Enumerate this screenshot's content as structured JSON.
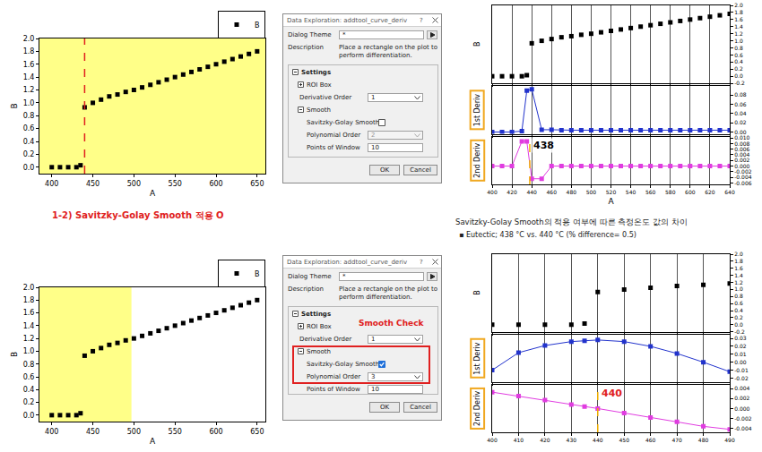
{
  "chart_data": [
    {
      "type": "scatter",
      "xlabel": "A",
      "ylabel": "B",
      "x": [
        400,
        410,
        420,
        430,
        435,
        440,
        450,
        460,
        470,
        480,
        490,
        500,
        510,
        520,
        530,
        540,
        550,
        560,
        570,
        580,
        590,
        600,
        610,
        620,
        630,
        640,
        650
      ],
      "series": [
        {
          "name": "B",
          "color": "#000000",
          "marker": "square",
          "values": [
            0,
            0,
            0,
            0,
            0.03,
            0.93,
            1.0,
            1.05,
            1.1,
            1.13,
            1.17,
            1.2,
            1.24,
            1.28,
            1.32,
            1.36,
            1.4,
            1.44,
            1.48,
            1.52,
            1.56,
            1.6,
            1.64,
            1.68,
            1.72,
            1.76,
            1.8
          ]
        }
      ],
      "xlim": [
        385,
        660
      ],
      "xticks": [
        400,
        450,
        500,
        550,
        600,
        650
      ],
      "ylim": [
        -0.1,
        2.0
      ],
      "yticks": [
        {
          "value": 0,
          "label": "0.0"
        },
        0.2,
        0.4,
        0.6,
        0.8,
        {
          "value": 1,
          "label": "1.0"
        },
        1.2,
        1.4,
        1.6,
        1.8,
        {
          "value": 2,
          "label": "2.0"
        }
      ],
      "legend": "top right",
      "grid": false,
      "roi": [
        385,
        660
      ],
      "vlines": [
        {
          "x": 440,
          "color": "#e02020",
          "line_style": "dash"
        }
      ]
    },
    {
      "type": "scatter",
      "xlabel": "A",
      "grid": "x",
      "x": [
        400,
        410,
        420,
        430,
        435,
        440,
        450,
        460,
        470,
        480,
        490,
        500,
        510,
        520,
        530,
        540,
        550,
        560,
        570,
        580,
        590,
        600,
        610,
        620,
        630,
        640
      ],
      "xlim": [
        400,
        640
      ],
      "xticks": [
        400,
        420,
        440,
        460,
        480,
        500,
        520,
        540,
        560,
        580,
        600,
        620,
        640
      ],
      "panels": [
        {
          "ylabel": "B",
          "tick_labels": "y",
          "ylim": [
            -0.2,
            2.0
          ],
          "yticks": [
            -0.2,
            {
              "value": 0,
              "label": "0.0"
            },
            0.2,
            0.4,
            0.6,
            0.8,
            {
              "value": 1,
              "label": "1.0"
            },
            1.2,
            1.4,
            1.6,
            1.8,
            {
              "value": 2,
              "label": "2.0"
            }
          ],
          "series": [
            {
              "color": "#000000",
              "marker": "square",
              "values": [
                0,
                0,
                0,
                0,
                0.03,
                0.93,
                1.0,
                1.05,
                1.1,
                1.13,
                1.17,
                1.2,
                1.24,
                1.28,
                1.32,
                1.36,
                1.4,
                1.44,
                1.48,
                1.52,
                1.56,
                1.6,
                1.64,
                1.68,
                1.72,
                1.76
              ]
            }
          ]
        },
        {
          "ylabel": "1st Deriv",
          "tick_labels": "y",
          "ylim": [
            -0.004,
            0.1
          ],
          "yticks": [
            {
              "value": 0,
              "label": "0.00"
            },
            0.02,
            0.04,
            0.06,
            0.08
          ],
          "series": [
            {
              "color": "#2233cc",
              "marker": "square",
              "line_style": "solid",
              "values": [
                0,
                0,
                0,
                0.002,
                0.09,
                0.093,
                0.005,
                0.005,
                0.004,
                0.004,
                0.004,
                0.004,
                0.004,
                0.004,
                0.004,
                0.004,
                0.004,
                0.004,
                0.004,
                0.004,
                0.004,
                0.004,
                0.004,
                0.004,
                0.004,
                0.004
              ]
            }
          ]
        },
        {
          "ylabel": "2nd Deriv",
          "ylim": [
            -0.0065,
            0.0105
          ],
          "yticks": [
            -0.006,
            -0.004,
            -0.002,
            {
              "value": 0,
              "label": "0.000"
            },
            0.002,
            0.004,
            0.006,
            0.008,
            {
              "value": 0.01,
              "label": "0.010"
            }
          ],
          "series": [
            {
              "color": "#e03ce0",
              "marker": "square",
              "line_style": "solid",
              "values": [
                0,
                0,
                0,
                0.0088,
                0.0088,
                -0.0045,
                -0.0045,
                0,
                0,
                0,
                0,
                0,
                0,
                0,
                0,
                0,
                0,
                0,
                0,
                0,
                0,
                0,
                0,
                0,
                0,
                0
              ]
            }
          ],
          "vlines": [
            {
              "x": 438,
              "color": "#f0b000",
              "line_style": "dash",
              "label": {
                "text": "438",
                "color": "#000000"
              }
            }
          ]
        }
      ]
    },
    {
      "type": "scatter",
      "xlabel": "A",
      "ylabel": "B",
      "x": [
        400,
        410,
        420,
        430,
        435,
        440,
        450,
        460,
        470,
        480,
        490,
        500,
        510,
        520,
        530,
        540,
        550,
        560,
        570,
        580,
        590,
        600,
        610,
        620,
        630,
        640,
        650
      ],
      "series": [
        {
          "name": "B",
          "color": "#000000",
          "marker": "square",
          "values": [
            0,
            0,
            0,
            0,
            0.03,
            0.93,
            1.0,
            1.05,
            1.1,
            1.13,
            1.17,
            1.2,
            1.24,
            1.28,
            1.32,
            1.36,
            1.4,
            1.44,
            1.48,
            1.52,
            1.56,
            1.6,
            1.64,
            1.68,
            1.72,
            1.76,
            1.8
          ]
        }
      ],
      "xlim": [
        385,
        660
      ],
      "xticks": [
        400,
        450,
        500,
        550,
        600,
        650
      ],
      "ylim": [
        -0.1,
        2.0
      ],
      "yticks": [
        {
          "value": 0,
          "label": "0.0"
        },
        0.2,
        0.4,
        0.6,
        0.8,
        {
          "value": 1,
          "label": "1.0"
        },
        1.2,
        1.4,
        1.6,
        1.8,
        {
          "value": 2,
          "label": "2.0"
        }
      ],
      "legend": "top right",
      "grid": false,
      "roi": [
        385,
        497
      ]
    },
    {
      "type": "scatter",
      "grid": "x",
      "x": [
        400,
        410,
        420,
        430,
        435,
        440,
        450,
        460,
        470,
        480,
        490
      ],
      "xlim": [
        400,
        490
      ],
      "xticks": [
        400,
        410,
        420,
        430,
        440,
        450,
        460,
        470,
        480,
        490
      ],
      "panels": [
        {
          "ylabel": "B",
          "tick_labels": "y",
          "ylim": [
            -0.2,
            2.0
          ],
          "yticks": [
            -0.2,
            {
              "value": 0,
              "label": "0.0"
            },
            0.2,
            0.4,
            0.6,
            0.8,
            {
              "value": 1,
              "label": "1.0"
            },
            1.2,
            1.4,
            1.6,
            1.8,
            {
              "value": 2,
              "label": "2.0"
            }
          ],
          "series": [
            {
              "color": "#000000",
              "marker": "square",
              "values": [
                0,
                0,
                0,
                0,
                0.03,
                0.93,
                1.0,
                1.05,
                1.1,
                1.13,
                1.17
              ]
            }
          ]
        },
        {
          "ylabel": "1st Deriv",
          "tick_labels": "y",
          "ylim": [
            -0.025,
            0.035
          ],
          "yticks": [
            -0.02,
            -0.01,
            {
              "value": 0,
              "label": "0.00"
            },
            0.01,
            0.02,
            0.03
          ],
          "series": [
            {
              "color": "#2233cc",
              "marker": "square",
              "line_style": "solid",
              "values": [
                -0.01,
                0.012,
                0.021,
                0.026,
                0.027,
                0.028,
                0.026,
                0.02,
                0.011,
                0.0,
                -0.012
              ]
            }
          ]
        },
        {
          "ylabel": "2nd Deriv",
          "ylim": [
            -0.0048,
            0.0048
          ],
          "yticks": [
            -0.004,
            -0.002,
            {
              "value": 0,
              "label": "0.000"
            },
            0.002,
            0.004
          ],
          "series": [
            {
              "color": "#e03ce0",
              "marker": "square",
              "line_style": "solid",
              "values": [
                0.0033,
                0.0025,
                0.0017,
                0.0008,
                0.0004,
                0.0,
                -0.0009,
                -0.0018,
                -0.0027,
                -0.0036,
                -0.0042
              ]
            }
          ],
          "vlines": [
            {
              "x": 440,
              "color": "#f0b000",
              "line_style": "dash",
              "label": {
                "text": "440",
                "color": "#e02020"
              }
            }
          ]
        }
      ]
    }
  ],
  "texts": {
    "section_label": "1-2) Savitzky-Golay  Smooth 적용 O",
    "comparison_title": "Savitzky-Golay Smooth의 적용 여부에 따른 측정온도 값의 차이",
    "comparison_note": "▪  Eutectic; 438 °C vs. 440 °C (% difference= 0.5)"
  },
  "dialogs": [
    {
      "title": "Data Exploration: addtool_curve_deriv",
      "help": "?",
      "theme_label": "Dialog Theme",
      "theme_value": "*",
      "description_label": "Description",
      "description": "Place a rectangle on the plot to perform differentiation.",
      "settings": "Settings",
      "roi": "ROI Box",
      "derivative_order_label": "Derivative Order",
      "derivative_order": 1,
      "smooth": "Smooth",
      "sg_label": "Savitzky-Golay Smooth",
      "sg_checked": false,
      "poly_label": "Polynomial Order",
      "poly": 2,
      "window_label": "Points of Window",
      "window": 10,
      "ok": "OK",
      "cancel": "Cancel"
    },
    {
      "title": "Data Exploration: addtool_curve_deriv",
      "help": "?",
      "theme_label": "Dialog Theme",
      "theme_value": "*",
      "description_label": "Description",
      "description": "Place a rectangle on the plot to perform differentiation.",
      "settings": "Settings",
      "roi": "ROI Box",
      "derivative_order_label": "Derivative Order",
      "derivative_order": 1,
      "smooth": "Smooth",
      "sg_label": "Savitzky-Golay Smooth",
      "sg_checked": true,
      "poly_label": "Polynomial Order",
      "poly": 3,
      "window_label": "Points of Window",
      "window": 10,
      "ok": "OK",
      "cancel": "Cancel",
      "callout": "Smooth Check"
    }
  ]
}
